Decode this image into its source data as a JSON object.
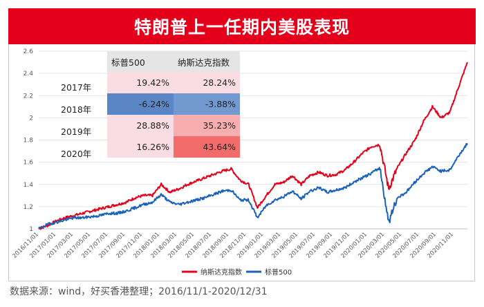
{
  "title": "特朗普上一任期内美股表现",
  "source": "数据来源：wind，好买香港整理；2016/11/1-2020/12/31",
  "table": {
    "headers": [
      "标普500",
      "纳斯达克指数"
    ],
    "rows": [
      {
        "year": "2017年",
        "sp500": "19.42%",
        "nasdaq": "28.24%",
        "sp_color": "#f9dde2",
        "nd_color": "#f9dde2"
      },
      {
        "year": "2018年",
        "sp500": "-6.24%",
        "nasdaq": "-3.88%",
        "sp_color": "#5b86c6",
        "nd_color": "#7299d0"
      },
      {
        "year": "2019年",
        "sp500": "28.88%",
        "nasdaq": "35.23%",
        "sp_color": "#f9dde2",
        "nd_color": "#f6aeae"
      },
      {
        "year": "2020年",
        "sp500": "16.26%",
        "nasdaq": "43.64%",
        "sp_color": "#f9dde2",
        "nd_color": "#f26c6c"
      }
    ]
  },
  "chart_data": {
    "type": "line",
    "title": "特朗普上一任期内美股表现",
    "xlabel": "",
    "ylabel": "",
    "ylim": [
      1,
      2.6
    ],
    "yticks": [
      "1",
      "1.2",
      "1.4",
      "1.6",
      "1.8",
      "2",
      "2.2",
      "2.4",
      "2.6"
    ],
    "xticks": [
      "2016/11/01",
      "2017/01/01",
      "2017/03/01",
      "2017/05/01",
      "2017/07/01",
      "2017/09/01",
      "2017/11/01",
      "2018/01/01",
      "2018/03/01",
      "2018/05/01",
      "2018/07/01",
      "2018/09/01",
      "2018/11/01",
      "2019/01/01",
      "2019/03/01",
      "2019/05/01",
      "2019/07/01",
      "2019/09/01",
      "2019/11/01",
      "2020/01/01",
      "2020/03/01",
      "2020/05/01",
      "2020/07/01",
      "2020/09/01",
      "2020/11/01"
    ],
    "legend_position": "bottom",
    "series": [
      {
        "name": "纳斯达克指数",
        "color": "#e4001b",
        "months": [
          "2016/11",
          "2016/12",
          "2017/01",
          "2017/02",
          "2017/03",
          "2017/04",
          "2017/05",
          "2017/06",
          "2017/07",
          "2017/08",
          "2017/09",
          "2017/10",
          "2017/11",
          "2017/12",
          "2018/01",
          "2018/02",
          "2018/03",
          "2018/04",
          "2018/05",
          "2018/06",
          "2018/07",
          "2018/08",
          "2018/09",
          "2018/10",
          "2018/11",
          "2018/12",
          "2019/01",
          "2019/02",
          "2019/03",
          "2019/04",
          "2019/05",
          "2019/06",
          "2019/07",
          "2019/08",
          "2019/09",
          "2019/10",
          "2019/11",
          "2019/12",
          "2020/01",
          "2020/02",
          "2020/03",
          "2020/04",
          "2020/05",
          "2020/06",
          "2020/07",
          "2020/08",
          "2020/09",
          "2020/10",
          "2020/11",
          "2020/12"
        ],
        "values": [
          1.0,
          1.03,
          1.07,
          1.1,
          1.12,
          1.14,
          1.16,
          1.18,
          1.2,
          1.22,
          1.24,
          1.28,
          1.3,
          1.3,
          1.4,
          1.33,
          1.36,
          1.4,
          1.43,
          1.46,
          1.49,
          1.52,
          1.54,
          1.44,
          1.4,
          1.19,
          1.3,
          1.4,
          1.42,
          1.48,
          1.4,
          1.48,
          1.51,
          1.48,
          1.49,
          1.53,
          1.6,
          1.68,
          1.74,
          1.76,
          1.36,
          1.55,
          1.68,
          1.8,
          1.97,
          2.1,
          2.0,
          2.05,
          2.28,
          2.5
        ]
      },
      {
        "name": "标普500",
        "color": "#1a62b9",
        "months": [
          "2016/11",
          "2016/12",
          "2017/01",
          "2017/02",
          "2017/03",
          "2017/04",
          "2017/05",
          "2017/06",
          "2017/07",
          "2017/08",
          "2017/09",
          "2017/10",
          "2017/11",
          "2017/12",
          "2018/01",
          "2018/02",
          "2018/03",
          "2018/04",
          "2018/05",
          "2018/06",
          "2018/07",
          "2018/08",
          "2018/09",
          "2018/10",
          "2018/11",
          "2018/12",
          "2019/01",
          "2019/02",
          "2019/03",
          "2019/04",
          "2019/05",
          "2019/06",
          "2019/07",
          "2019/08",
          "2019/09",
          "2019/10",
          "2019/11",
          "2019/12",
          "2020/01",
          "2020/02",
          "2020/03",
          "2020/04",
          "2020/05",
          "2020/06",
          "2020/07",
          "2020/08",
          "2020/09",
          "2020/10",
          "2020/11",
          "2020/12"
        ],
        "values": [
          1.0,
          1.04,
          1.06,
          1.08,
          1.1,
          1.1,
          1.11,
          1.12,
          1.14,
          1.14,
          1.16,
          1.19,
          1.22,
          1.24,
          1.31,
          1.24,
          1.22,
          1.24,
          1.26,
          1.28,
          1.31,
          1.34,
          1.35,
          1.26,
          1.26,
          1.1,
          1.21,
          1.26,
          1.29,
          1.34,
          1.27,
          1.34,
          1.37,
          1.33,
          1.35,
          1.37,
          1.42,
          1.46,
          1.5,
          1.55,
          1.06,
          1.28,
          1.33,
          1.42,
          1.5,
          1.56,
          1.52,
          1.53,
          1.66,
          1.77
        ]
      }
    ]
  }
}
